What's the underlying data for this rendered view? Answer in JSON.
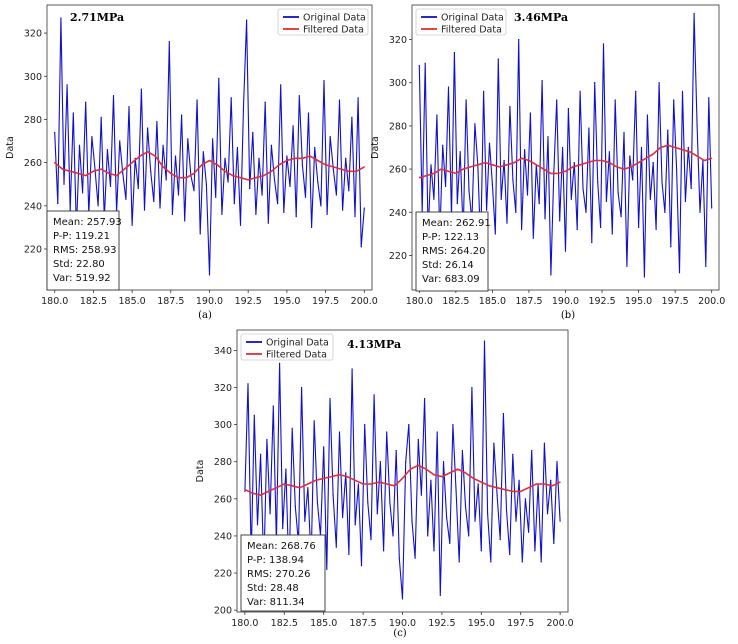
{
  "chart_data": [
    {
      "type": "line",
      "panel": "a",
      "title": "2.71MPa",
      "caption": "(a)",
      "xlabel": "",
      "ylabel": "Data",
      "xlim": [
        179.5,
        200.5
      ],
      "ylim": [
        201,
        333
      ],
      "xticks": [
        "180.0",
        "182.5",
        "185.0",
        "187.5",
        "190.0",
        "192.5",
        "195.0",
        "197.5",
        "200.0"
      ],
      "yticks": [
        "220",
        "240",
        "260",
        "280",
        "300",
        "320"
      ],
      "legend": {
        "position": "top-right",
        "entries": [
          "Original Data",
          "Filtered Data"
        ]
      },
      "stats": [
        "Mean: 257.93",
        "P-P: 119.21",
        "RMS: 258.93",
        "Std: 22.80",
        "Var: 519.92"
      ],
      "series": [
        {
          "name": "Original Data",
          "color": "#1010cc",
          "x": [
            180.0,
            180.2,
            180.4,
            180.6,
            180.8,
            181.0,
            181.2,
            181.4,
            181.6,
            181.8,
            182.0,
            182.2,
            182.4,
            182.6,
            182.8,
            183.0,
            183.2,
            183.4,
            183.6,
            183.8,
            184.0,
            184.2,
            184.4,
            184.6,
            184.8,
            185.0,
            185.2,
            185.4,
            185.6,
            185.8,
            186.0,
            186.2,
            186.4,
            186.6,
            186.8,
            187.0,
            187.2,
            187.4,
            187.6,
            187.8,
            188.0,
            188.2,
            188.4,
            188.6,
            188.8,
            189.0,
            189.2,
            189.4,
            189.6,
            189.8,
            190.0,
            190.2,
            190.4,
            190.6,
            190.8,
            191.0,
            191.2,
            191.4,
            191.6,
            191.8,
            192.0,
            192.2,
            192.4,
            192.6,
            192.8,
            193.0,
            193.2,
            193.4,
            193.6,
            193.8,
            194.0,
            194.2,
            194.4,
            194.6,
            194.8,
            195.0,
            195.2,
            195.4,
            195.6,
            195.8,
            196.0,
            196.2,
            196.4,
            196.6,
            196.8,
            197.0,
            197.2,
            197.4,
            197.6,
            197.8,
            198.0,
            198.2,
            198.4,
            198.6,
            198.8,
            199.0,
            199.2,
            199.4,
            199.6,
            199.8,
            200.0
          ],
          "y": [
            274,
            241,
            327,
            250,
            296,
            238,
            283,
            229,
            268,
            246,
            288,
            236,
            272,
            257,
            240,
            281,
            234,
            266,
            249,
            291,
            237,
            270,
            255,
            243,
            286,
            231,
            262,
            248,
            294,
            238,
            276,
            256,
            242,
            279,
            239,
            268,
            252,
            316,
            236,
            263,
            245,
            282,
            233,
            271,
            254,
            247,
            289,
            227,
            265,
            250,
            208,
            271,
            244,
            299,
            236,
            262,
            251,
            290,
            241,
            267,
            231,
            286,
            326,
            248,
            274,
            236,
            262,
            245,
            288,
            232,
            268,
            252,
            241,
            296,
            237,
            263,
            249,
            277,
            235,
            291,
            259,
            244,
            283,
            230,
            267,
            251,
            240,
            298,
            236,
            272,
            257,
            245,
            289,
            238,
            262,
            247,
            281,
            235,
            290,
            221,
            239
          ]
        },
        {
          "name": "Filtered Data",
          "color": "#e03030",
          "x": [
            180.0,
            180.5,
            181.0,
            181.5,
            182.0,
            182.5,
            183.0,
            183.5,
            184.0,
            184.5,
            185.0,
            185.5,
            186.0,
            186.5,
            187.0,
            187.5,
            188.0,
            188.5,
            189.0,
            189.5,
            190.0,
            190.5,
            191.0,
            191.5,
            192.0,
            192.5,
            193.0,
            193.5,
            194.0,
            194.5,
            195.0,
            195.5,
            196.0,
            196.5,
            197.0,
            197.5,
            198.0,
            198.5,
            199.0,
            199.5,
            200.0
          ],
          "y": [
            260,
            257,
            256,
            255,
            254,
            256,
            257,
            255,
            254,
            257,
            260,
            263,
            265,
            263,
            258,
            255,
            253,
            253,
            255,
            259,
            261,
            259,
            256,
            254,
            253,
            252,
            253,
            254,
            256,
            259,
            261,
            262,
            262,
            263,
            261,
            259,
            258,
            257,
            256,
            256,
            258
          ]
        }
      ]
    },
    {
      "type": "line",
      "panel": "b",
      "title": "3.46MPa",
      "caption": "(b)",
      "xlabel": "",
      "ylabel": "Data",
      "xlim": [
        179.5,
        200.5
      ],
      "ylim": [
        204,
        336
      ],
      "xticks": [
        "180.0",
        "182.5",
        "185.0",
        "187.5",
        "190.0",
        "192.5",
        "195.0",
        "197.5",
        "200.0"
      ],
      "yticks": [
        "220",
        "240",
        "260",
        "280",
        "300",
        "320"
      ],
      "legend": {
        "position": "top-left",
        "entries": [
          "Original Data",
          "Filtered Data"
        ]
      },
      "stats": [
        "Mean: 262.91",
        "P-P: 122.13",
        "RMS: 264.20",
        "Std: 26.14",
        "Var: 683.09"
      ],
      "series": [
        {
          "name": "Original Data",
          "color": "#1010cc",
          "x": [
            180.0,
            180.2,
            180.4,
            180.6,
            180.8,
            181.0,
            181.2,
            181.4,
            181.6,
            181.8,
            182.0,
            182.2,
            182.4,
            182.6,
            182.8,
            183.0,
            183.2,
            183.4,
            183.6,
            183.8,
            184.0,
            184.2,
            184.4,
            184.6,
            184.8,
            185.0,
            185.2,
            185.4,
            185.6,
            185.8,
            186.0,
            186.2,
            186.4,
            186.6,
            186.8,
            187.0,
            187.2,
            187.4,
            187.6,
            187.8,
            188.0,
            188.2,
            188.4,
            188.6,
            188.8,
            189.0,
            189.2,
            189.4,
            189.6,
            189.8,
            190.0,
            190.2,
            190.4,
            190.6,
            190.8,
            191.0,
            191.2,
            191.4,
            191.6,
            191.8,
            192.0,
            192.2,
            192.4,
            192.6,
            192.8,
            193.0,
            193.2,
            193.4,
            193.6,
            193.8,
            194.0,
            194.2,
            194.4,
            194.6,
            194.8,
            195.0,
            195.2,
            195.4,
            195.6,
            195.8,
            196.0,
            196.2,
            196.4,
            196.6,
            196.8,
            197.0,
            197.2,
            197.4,
            197.6,
            197.8,
            198.0,
            198.2,
            198.4,
            198.6,
            198.8,
            199.0,
            199.2,
            199.4,
            199.6,
            199.8,
            200.0
          ],
          "y": [
            308,
            240,
            309,
            230,
            262,
            246,
            285,
            228,
            271,
            252,
            298,
            238,
            314,
            244,
            268,
            230,
            292,
            250,
            236,
            281,
            262,
            224,
            296,
            241,
            272,
            253,
            230,
            311,
            246,
            264,
            235,
            289,
            255,
            240,
            320,
            232,
            269,
            248,
            286,
            228,
            262,
            244,
            301,
            237,
            275,
            211,
            258,
            292,
            236,
            270,
            222,
            288,
            246,
            263,
            232,
            296,
            251,
            240,
            279,
            226,
            300,
            254,
            233,
            318,
            245,
            268,
            230,
            292,
            249,
            238,
            277,
            215,
            266,
            255,
            296,
            233,
            270,
            210,
            285,
            246,
            263,
            232,
            300,
            254,
            240,
            278,
            224,
            292,
            260,
            212,
            296,
            245,
            270,
            251,
            332,
            280,
            240,
            264,
            215,
            293,
            242
          ]
        },
        {
          "name": "Filtered Data",
          "color": "#e03030",
          "x": [
            180.0,
            180.5,
            181.0,
            181.5,
            182.0,
            182.5,
            183.0,
            183.5,
            184.0,
            184.5,
            185.0,
            185.5,
            186.0,
            186.5,
            187.0,
            187.5,
            188.0,
            188.5,
            189.0,
            189.5,
            190.0,
            190.5,
            191.0,
            191.5,
            192.0,
            192.5,
            193.0,
            193.5,
            194.0,
            194.5,
            195.0,
            195.5,
            196.0,
            196.5,
            197.0,
            197.5,
            198.0,
            198.5,
            199.0,
            199.5,
            200.0
          ],
          "y": [
            256,
            257,
            258,
            260,
            259,
            258,
            260,
            261,
            262,
            263,
            262,
            261,
            262,
            263,
            265,
            264,
            262,
            260,
            258,
            258,
            259,
            261,
            262,
            263,
            264,
            264,
            263,
            261,
            260,
            261,
            263,
            265,
            267,
            270,
            271,
            270,
            269,
            268,
            266,
            264,
            265
          ]
        }
      ]
    },
    {
      "type": "line",
      "panel": "c",
      "title": "4.13MPa",
      "caption": "(c)",
      "xlabel": "",
      "ylabel": "Data",
      "xlim": [
        179.5,
        200.5
      ],
      "ylim": [
        199,
        351
      ],
      "xticks": [
        "180.0",
        "182.5",
        "185.0",
        "187.5",
        "190.0",
        "192.5",
        "195.0",
        "197.5",
        "200.0"
      ],
      "yticks": [
        "200",
        "220",
        "240",
        "260",
        "280",
        "300",
        "320",
        "340"
      ],
      "legend": {
        "position": "top-left",
        "entries": [
          "Original Data",
          "Filtered Data"
        ]
      },
      "stats": [
        "Mean: 268.76",
        "P-P: 138.94",
        "RMS: 270.26",
        "Std: 28.48",
        "Var: 811.34"
      ],
      "series": [
        {
          "name": "Original Data",
          "color": "#1010cc",
          "x": [
            180.0,
            180.2,
            180.4,
            180.6,
            180.8,
            181.0,
            181.2,
            181.4,
            181.6,
            181.8,
            182.0,
            182.2,
            182.4,
            182.6,
            182.8,
            183.0,
            183.2,
            183.4,
            183.6,
            183.8,
            184.0,
            184.2,
            184.4,
            184.6,
            184.8,
            185.0,
            185.2,
            185.4,
            185.6,
            185.8,
            186.0,
            186.2,
            186.4,
            186.6,
            186.8,
            187.0,
            187.2,
            187.4,
            187.6,
            187.8,
            188.0,
            188.2,
            188.4,
            188.6,
            188.8,
            189.0,
            189.2,
            189.4,
            189.6,
            189.8,
            190.0,
            190.2,
            190.4,
            190.6,
            190.8,
            191.0,
            191.2,
            191.4,
            191.6,
            191.8,
            192.0,
            192.2,
            192.4,
            192.6,
            192.8,
            193.0,
            193.2,
            193.4,
            193.6,
            193.8,
            194.0,
            194.2,
            194.4,
            194.6,
            194.8,
            195.0,
            195.2,
            195.4,
            195.6,
            195.8,
            196.0,
            196.2,
            196.4,
            196.6,
            196.8,
            197.0,
            197.2,
            197.4,
            197.6,
            197.8,
            198.0,
            198.2,
            198.4,
            198.6,
            198.8,
            199.0,
            199.2,
            199.4,
            199.6,
            199.8,
            200.0
          ],
          "y": [
            264,
            322,
            228,
            305,
            246,
            284,
            222,
            292,
            252,
            310,
            236,
            333,
            244,
            276,
            218,
            298,
            256,
            236,
            320,
            248,
            266,
            226,
            302,
            258,
            240,
            288,
            222,
            314,
            262,
            234,
            296,
            250,
            274,
            230,
            330,
            246,
            268,
            224,
            300,
            258,
            238,
            316,
            252,
            280,
            232,
            296,
            258,
            240,
            286,
            228,
            206,
            280,
            300,
            248,
            228,
            292,
            262,
            314,
            240,
            270,
            232,
            296,
            208,
            280,
            250,
            236,
            300,
            264,
            226,
            286,
            256,
            240,
            320,
            248,
            268,
            232,
            345,
            252,
            226,
            290,
            262,
            238,
            306,
            254,
            230,
            284,
            248,
            270,
            226,
            260,
            242,
            286,
            232,
            268,
            226,
            290,
            252,
            270,
            236,
            280,
            248
          ]
        },
        {
          "name": "Filtered Data",
          "color": "#e03030",
          "x": [
            180.0,
            180.5,
            181.0,
            181.5,
            182.0,
            182.5,
            183.0,
            183.5,
            184.0,
            184.5,
            185.0,
            185.5,
            186.0,
            186.5,
            187.0,
            187.5,
            188.0,
            188.5,
            189.0,
            189.5,
            190.0,
            190.5,
            191.0,
            191.5,
            192.0,
            192.5,
            193.0,
            193.5,
            194.0,
            194.5,
            195.0,
            195.5,
            196.0,
            196.5,
            197.0,
            197.5,
            198.0,
            198.5,
            199.0,
            199.5,
            200.0
          ],
          "y": [
            265,
            263,
            262,
            264,
            266,
            268,
            267,
            266,
            268,
            270,
            271,
            272,
            273,
            272,
            270,
            268,
            268,
            269,
            268,
            267,
            271,
            276,
            278,
            276,
            273,
            272,
            274,
            276,
            274,
            271,
            269,
            267,
            266,
            265,
            264,
            264,
            266,
            268,
            268,
            267,
            269
          ]
        }
      ]
    }
  ]
}
